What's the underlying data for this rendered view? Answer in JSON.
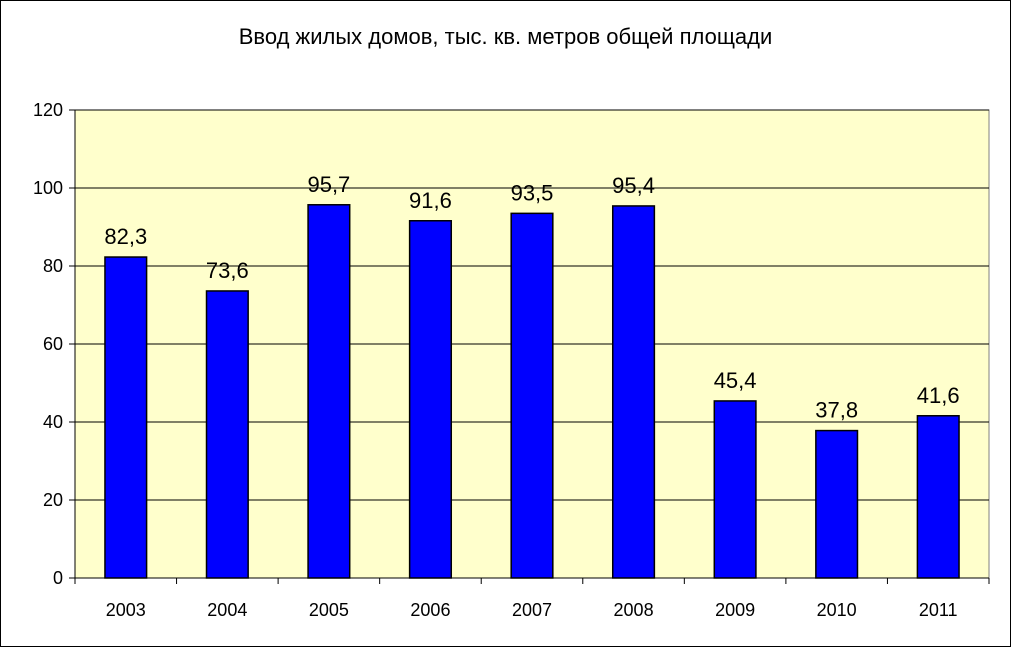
{
  "chart_data": {
    "type": "bar",
    "title": "Ввод жилых домов, тыс. кв. метров общей площади",
    "xlabel": "",
    "ylabel": "",
    "categories": [
      "2003",
      "2004",
      "2005",
      "2006",
      "2007",
      "2008",
      "2009",
      "2010",
      "2011"
    ],
    "values": [
      82.3,
      73.6,
      95.7,
      91.6,
      93.5,
      95.4,
      45.4,
      37.8,
      41.6
    ],
    "data_labels": [
      "82,3",
      "73,6",
      "95,7",
      "91,6",
      "93,5",
      "95,4",
      "45,4",
      "37,8",
      "41,6"
    ],
    "ylim": [
      0,
      120
    ],
    "y_ticks": [
      0,
      20,
      40,
      60,
      80,
      100,
      120
    ],
    "y_tick_labels": [
      "0",
      "20",
      "40",
      "60",
      "80",
      "100",
      "120"
    ],
    "grid": true,
    "legend": "none",
    "colors": {
      "bar": "#0000ff",
      "bar_outline": "#000000",
      "plot_background": "#ffffcc",
      "gridline": "#000000"
    }
  }
}
